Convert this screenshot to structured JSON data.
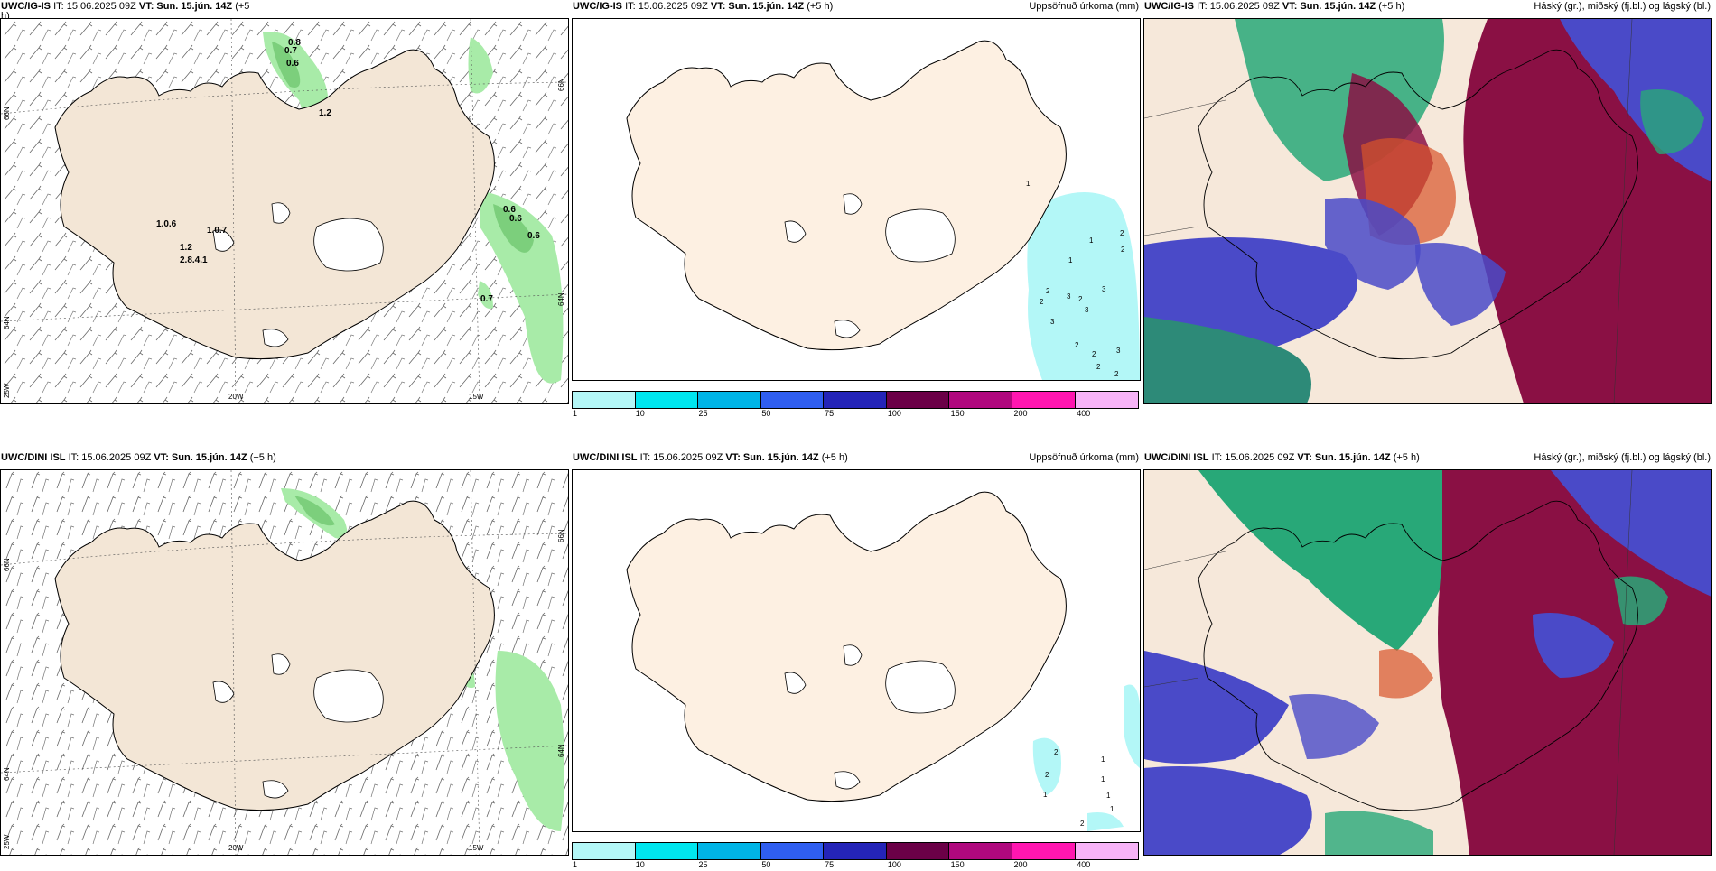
{
  "panels": [
    {
      "model": "UWC/IG-IS",
      "it_label": "IT: 15.06.2025 09Z",
      "vt_label": "VT: Sun. 15.jún. 14Z",
      "lead": "(+5",
      "lead_cont": "h)",
      "right_label": "",
      "precip_values": [
        "0.8",
        "0.7",
        "0.6",
        "1.2",
        "1.0.6",
        "1.0.7",
        "1.2",
        "2.8.4.1",
        "0.6",
        "0.6",
        "0.6",
        "0.7"
      ]
    },
    {
      "model": "UWC/IG-IS",
      "it_label": "IT: 15.06.2025 09Z",
      "vt_label": "VT: Sun. 15.jún. 14Z",
      "lead": "(+5 h)",
      "right_label": "Uppsöfnuð úrkoma (mm)",
      "precip_values": [
        "1",
        "2",
        "2",
        "1",
        "1",
        "2",
        "2",
        "3",
        "2",
        "3",
        "3",
        "3",
        "2",
        "2",
        "3",
        "2",
        "2"
      ]
    },
    {
      "model": "UWC/IG-IS",
      "it_label": "IT: 15.06.2025 09Z",
      "vt_label": "VT: Sun. 15.jún. 14Z",
      "lead": "(+5 h)",
      "right_label": "Háský (gr.), miðský (fj.bl.) og lágský (bl.)"
    },
    {
      "model": "UWC/DINI ISL",
      "it_label": "IT: 15.06.2025 09Z",
      "vt_label": "VT: Sun. 15.jún. 14Z",
      "lead": "(+5 h)",
      "right_label": ""
    },
    {
      "model": "UWC/DINI ISL",
      "it_label": "IT: 15.06.2025 09Z",
      "vt_label": "VT: Sun. 15.jún. 14Z",
      "lead": "(+5 h)",
      "right_label": "Uppsöfnuð úrkoma (mm)",
      "precip_values": [
        "2",
        "2",
        "1",
        "1",
        "1",
        "1",
        "1",
        "2"
      ]
    },
    {
      "model": "UWC/DINI ISL",
      "it_label": "IT: 15.06.2025 09Z",
      "vt_label": "VT: Sun. 15.jún. 14Z",
      "lead": "(+5 h)",
      "right_label": "Háský (gr.), miðský (fj.bl.) og lágský (bl.)"
    }
  ],
  "axes": {
    "lat_66": "66N",
    "lat_64": "64N",
    "lon_25": "25W",
    "lon_20": "20W",
    "lon_15": "15W"
  },
  "colorbar": {
    "labels": [
      "1",
      "10",
      "25",
      "50",
      "75",
      "100",
      "150",
      "200",
      "400"
    ],
    "colors": [
      "#b3f7f7",
      "#00e6ef",
      "#00b4e6",
      "#2f5ef0",
      "#2424b8",
      "#6b0047",
      "#b0087e",
      "#ff16b0",
      "#f7b3f7"
    ]
  },
  "colors": {
    "land": "#f3e6d6",
    "land_light": "#fdf0e2",
    "precip_green": "#a8eba8",
    "precip_cyan": "#b3f7f7",
    "high_cloud": "#28a878",
    "mid_cloud": "#8a1044",
    "low_cloud": "#4a4ac8"
  }
}
